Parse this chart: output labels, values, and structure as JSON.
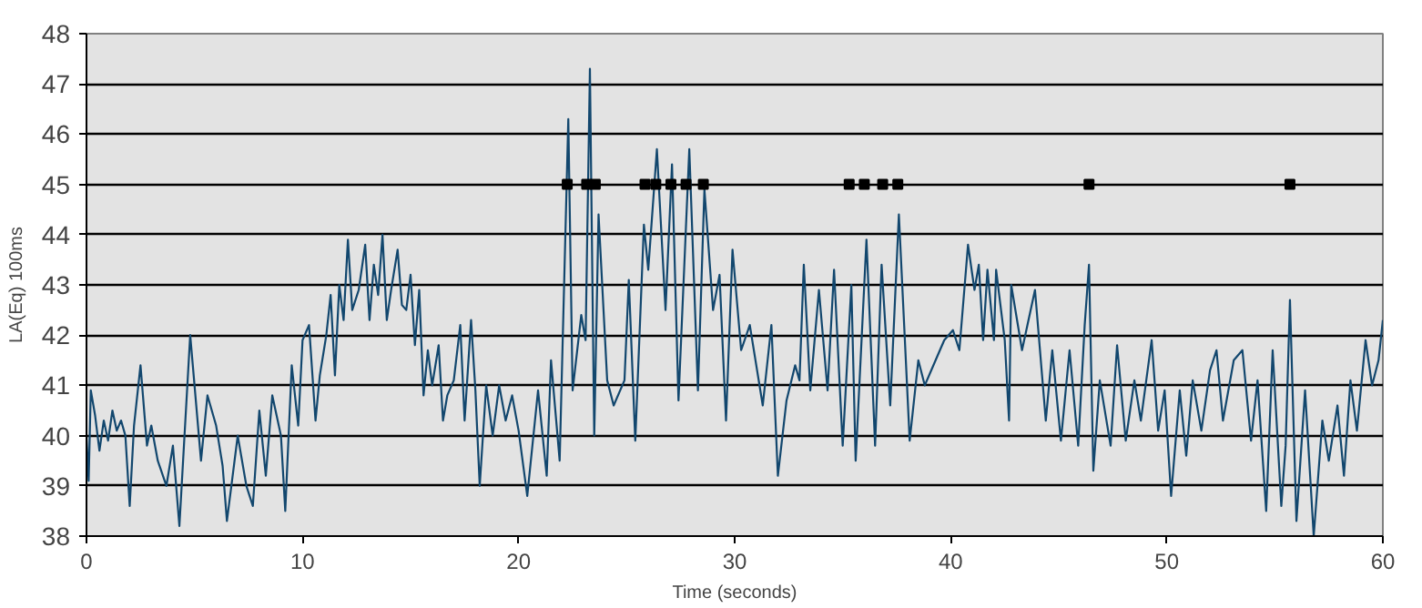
{
  "chart_data": {
    "type": "line",
    "xlabel": "Time (seconds)",
    "ylabel": "LA(Eq) 100ms",
    "xlim": [
      0,
      60
    ],
    "xticks": [
      0,
      10,
      20,
      30,
      40,
      50,
      60
    ],
    "ylim": [
      38,
      48
    ],
    "yticks": [
      38,
      39,
      40,
      41,
      42,
      43,
      44,
      45,
      46,
      47,
      48
    ],
    "grid": "y",
    "series": [
      {
        "color": "#12476e",
        "line_style": "solid",
        "x": [
          0,
          0.1,
          0.2,
          0.4,
          0.6,
          0.8,
          1.0,
          1.2,
          1.4,
          1.6,
          1.8,
          2.0,
          2.2,
          2.5,
          2.8,
          3.0,
          3.3,
          3.7,
          4.0,
          4.3,
          4.8,
          5.3,
          5.6,
          6.0,
          6.3,
          6.5,
          7.0,
          7.4,
          7.7,
          8.0,
          8.3,
          8.6,
          9.0,
          9.2,
          9.5,
          9.8,
          10.0,
          10.3,
          10.6,
          10.8,
          11.1,
          11.3,
          11.5,
          11.7,
          11.9,
          12.1,
          12.3,
          12.6,
          12.9,
          13.1,
          13.3,
          13.5,
          13.7,
          13.9,
          14.1,
          14.4,
          14.6,
          14.8,
          15.0,
          15.2,
          15.4,
          15.6,
          15.8,
          16.0,
          16.3,
          16.5,
          16.7,
          17.0,
          17.3,
          17.5,
          17.8,
          18.0,
          18.2,
          18.5,
          18.8,
          19.1,
          19.4,
          19.7,
          20.0,
          20.4,
          20.9,
          21.3,
          21.5,
          21.9,
          22.3,
          22.5,
          22.9,
          23.1,
          23.3,
          23.5,
          23.7,
          24.1,
          24.4,
          24.9,
          25.1,
          25.4,
          25.8,
          26.0,
          26.4,
          26.8,
          27.1,
          27.4,
          27.9,
          28.3,
          28.6,
          29.0,
          29.3,
          29.6,
          29.9,
          30.3,
          30.7,
          31.3,
          31.7,
          32.0,
          32.4,
          32.8,
          33.0,
          33.2,
          33.5,
          33.9,
          34.3,
          34.6,
          35.0,
          35.4,
          35.6,
          36.1,
          36.5,
          36.8,
          37.2,
          37.6,
          38.1,
          38.5,
          38.8,
          39.3,
          39.7,
          40.1,
          40.4,
          40.8,
          41.1,
          41.3,
          41.5,
          41.7,
          42.0,
          42.1,
          42.5,
          42.7,
          42.8,
          43.3,
          43.9,
          44.4,
          44.7,
          45.1,
          45.5,
          45.9,
          46.2,
          46.4,
          46.6,
          46.9,
          47.4,
          47.7,
          48.1,
          48.5,
          48.8,
          49.3,
          49.6,
          49.9,
          50.2,
          50.6,
          50.9,
          51.2,
          51.6,
          52.0,
          52.3,
          52.6,
          53.1,
          53.5,
          53.9,
          54.2,
          54.6,
          54.9,
          55.3,
          55.5,
          55.7,
          56.0,
          56.4,
          56.8,
          57.2,
          57.5,
          57.9,
          58.2,
          58.5,
          58.8,
          59.2,
          59.5,
          59.8,
          60.0
        ],
        "values": [
          40.0,
          39.1,
          40.9,
          40.4,
          39.7,
          40.3,
          39.9,
          40.5,
          40.1,
          40.3,
          40.0,
          38.6,
          40.2,
          41.4,
          39.8,
          40.2,
          39.5,
          39.0,
          39.8,
          38.2,
          42.0,
          39.5,
          40.8,
          40.2,
          39.4,
          38.3,
          40.0,
          39.0,
          38.6,
          40.5,
          39.2,
          40.8,
          40.0,
          38.5,
          41.4,
          40.2,
          41.9,
          42.2,
          40.3,
          41.2,
          42.0,
          42.8,
          41.2,
          43.0,
          42.3,
          43.9,
          42.5,
          42.9,
          43.8,
          42.3,
          43.4,
          42.8,
          44.0,
          42.3,
          42.9,
          43.7,
          42.6,
          42.5,
          43.2,
          41.8,
          42.9,
          40.8,
          41.7,
          41.0,
          41.8,
          40.3,
          40.8,
          41.1,
          42.2,
          40.3,
          42.3,
          40.9,
          39.0,
          41.0,
          40.0,
          41.0,
          40.3,
          40.8,
          40.1,
          38.8,
          40.9,
          39.2,
          41.5,
          39.5,
          46.3,
          40.9,
          42.4,
          41.9,
          47.3,
          40.0,
          44.4,
          41.1,
          40.6,
          41.1,
          43.1,
          39.9,
          44.2,
          43.3,
          45.7,
          42.5,
          45.4,
          40.7,
          45.7,
          40.9,
          44.9,
          42.5,
          43.2,
          40.3,
          43.7,
          41.7,
          42.2,
          40.6,
          42.2,
          39.2,
          40.7,
          41.4,
          41.1,
          43.4,
          40.9,
          42.9,
          40.9,
          43.3,
          39.8,
          43.0,
          39.5,
          43.9,
          39.8,
          43.4,
          40.6,
          44.4,
          39.9,
          41.5,
          41.0,
          41.5,
          41.9,
          42.1,
          41.7,
          43.8,
          42.9,
          43.4,
          41.9,
          43.3,
          41.9,
          43.3,
          41.9,
          40.3,
          43.0,
          41.7,
          42.9,
          40.3,
          41.7,
          39.9,
          41.7,
          39.8,
          42.2,
          43.4,
          39.3,
          41.1,
          39.8,
          41.8,
          39.9,
          41.1,
          40.3,
          41.9,
          40.1,
          40.9,
          38.8,
          40.9,
          39.6,
          41.1,
          40.1,
          41.3,
          41.7,
          40.3,
          41.5,
          41.7,
          39.9,
          41.1,
          38.5,
          41.7,
          38.6,
          39.8,
          42.7,
          38.3,
          40.9,
          38.0,
          40.3,
          39.5,
          40.6,
          39.2,
          41.1,
          40.1,
          41.9,
          41.0,
          41.5,
          42.3
        ]
      },
      {
        "type": "scatter",
        "color": "#000000",
        "marker": "square",
        "x": [
          22.25,
          23.15,
          23.55,
          25.85,
          26.35,
          27.05,
          27.75,
          28.55,
          35.3,
          36.0,
          36.85,
          37.55,
          46.4,
          55.7
        ],
        "values": [
          45,
          45,
          45,
          45,
          45,
          45,
          45,
          45,
          45,
          45,
          45,
          45,
          45,
          45
        ]
      }
    ]
  }
}
